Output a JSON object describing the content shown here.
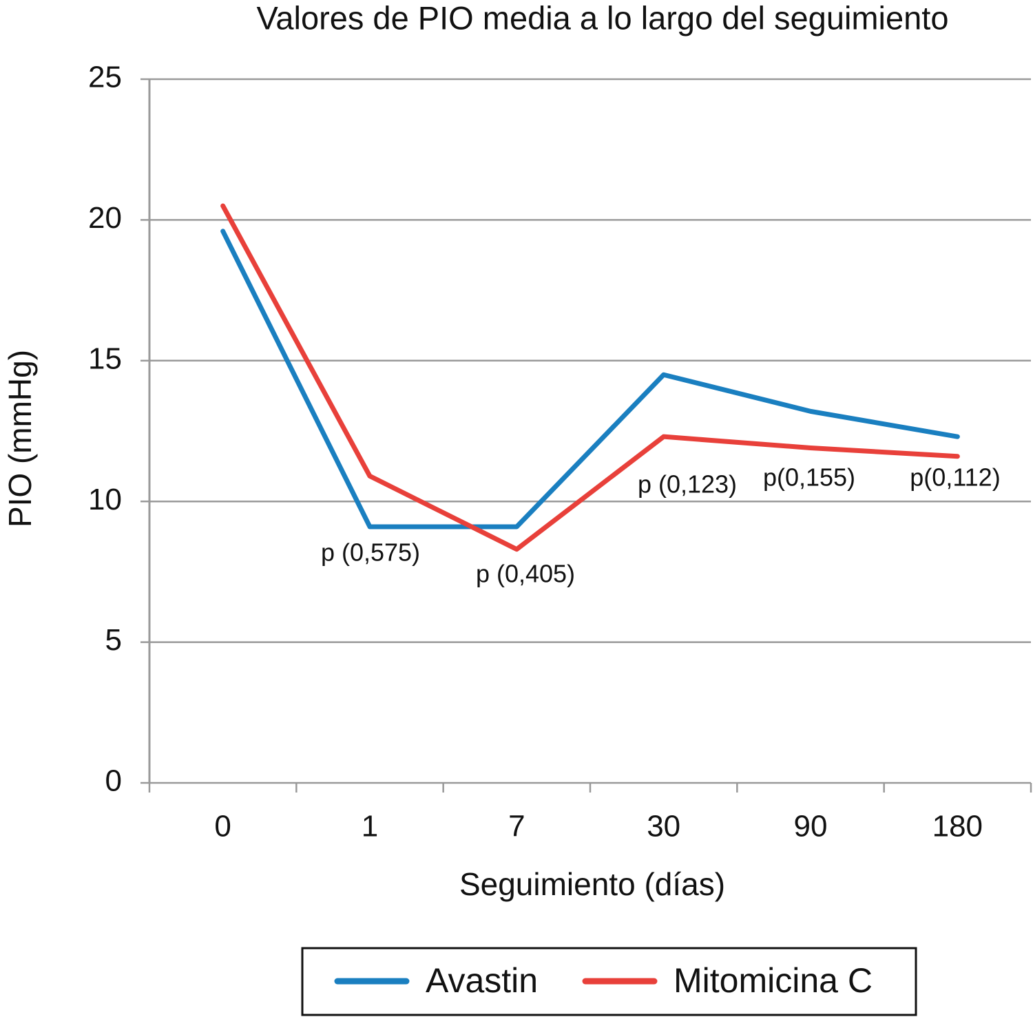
{
  "chart_data": {
    "type": "line",
    "title": "Valores de PIO media a lo largo del seguimiento",
    "x_label": "Seguimiento (días)",
    "y_label": "PIO (mmHg)",
    "categories": [
      "0",
      "1",
      "7",
      "30",
      "90",
      "180"
    ],
    "series": [
      {
        "name": "Avastin",
        "color": "#1a7fc0",
        "values": [
          19.6,
          9.1,
          9.1,
          14.5,
          13.2,
          12.3
        ]
      },
      {
        "name": "Mitomicina C",
        "color": "#e8403a",
        "values": [
          20.5,
          10.9,
          8.3,
          12.3,
          11.9,
          11.6
        ]
      }
    ],
    "annotations": [
      "p (0,575)",
      "p (0,405)",
      "p (0,123)",
      "p(0,155)",
      "p(0,112)"
    ],
    "ylim": [
      0,
      25
    ],
    "yticks": [
      0,
      5,
      10,
      15,
      20,
      25
    ],
    "grid": true,
    "legend": "bottom"
  }
}
